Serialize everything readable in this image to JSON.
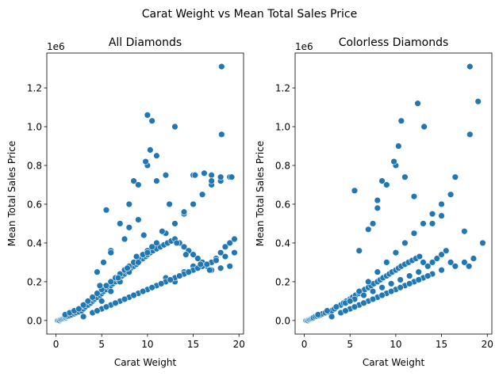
{
  "chart_data": {
    "suptitle": "Carat Weight vs Mean Total Sales Price",
    "point_color": "#1f77b4",
    "point_edge_color": "#ffffff",
    "panels": [
      {
        "type": "scatter",
        "title": "All Diamonds",
        "xlabel": "Carat Weight",
        "ylabel": "Mean Total Sales Price",
        "offset_text": "1e6",
        "xlim": [
          -1,
          20.5
        ],
        "ylim": [
          -0.07,
          1.38
        ],
        "xticks": [
          0,
          5,
          10,
          15,
          20
        ],
        "xtick_labels": [
          "0",
          "5",
          "10",
          "15",
          "20"
        ],
        "yticks": [
          0.0,
          0.2,
          0.4,
          0.6,
          0.8,
          1.0,
          1.2
        ],
        "ytick_labels": [
          "0.0",
          "0.2",
          "0.4",
          "0.6",
          "0.8",
          "1.0",
          "1.2"
        ],
        "x": [
          0.2,
          0.3,
          0.4,
          0.5,
          0.6,
          0.7,
          0.8,
          0.9,
          1.0,
          1.1,
          1.2,
          1.3,
          1.5,
          1.7,
          2.0,
          2.2,
          2.5,
          2.8,
          3.0,
          3.2,
          3.5,
          3.8,
          4.0,
          4.2,
          4.5,
          4.8,
          5.0,
          5.2,
          5.5,
          5.8,
          6.0,
          6.2,
          6.5,
          6.8,
          7.0,
          7.2,
          7.5,
          7.8,
          8.0,
          8.2,
          8.5,
          8.8,
          9.0,
          9.2,
          9.5,
          9.8,
          10.0,
          10.3,
          10.6,
          11.0,
          11.4,
          11.8,
          12.2,
          12.6,
          13.0,
          13.5,
          14.0,
          14.5,
          15.0,
          15.5,
          16.0,
          16.5,
          17.0,
          17.5,
          18.0,
          18.5,
          19.0,
          19.5,
          1.0,
          1.5,
          2.0,
          2.5,
          3.0,
          3.5,
          4.0,
          4.5,
          5.0,
          5.5,
          6.0,
          6.5,
          7.0,
          7.5,
          8.0,
          8.5,
          9.0,
          9.5,
          10.0,
          10.5,
          11.0,
          12.0,
          13.0,
          14.0,
          15.0,
          16.0,
          17.0,
          18.0,
          19.0,
          3.0,
          4.0,
          5.0,
          6.0,
          7.0,
          8.0,
          9.0,
          10.0,
          11.0,
          12.0,
          13.0,
          14.0,
          15.0,
          16.0,
          4.5,
          5.5,
          6.5,
          7.5,
          8.5,
          9.5,
          10.5,
          11.5,
          12.5,
          13.5,
          14.5,
          15.5,
          16.5,
          17.5,
          18.5,
          19.5,
          5.0,
          6.0,
          7.0,
          8.0,
          9.0,
          10.0,
          11.0,
          12.0,
          13.0,
          14.0,
          15.0,
          16.0,
          17.0,
          18.0,
          19.0,
          6.0,
          7.0,
          8.0,
          9.0,
          10.0,
          11.0,
          12.0,
          14.0,
          15.0,
          17.0,
          18.0,
          10.0,
          10.5,
          13.0,
          15.2,
          16.2,
          17.0,
          18.1,
          18.1,
          19.2,
          5.5,
          8.5,
          9.8,
          10.3,
          11.0,
          12.4,
          4.5,
          5.2,
          6.0,
          7.5,
          8.0,
          9.0,
          4.8,
          6.8,
          7.8,
          8.8,
          9.6,
          11.6,
          13.2,
          14.2,
          15.8,
          16.8
        ],
        "y": [
          0.0,
          0.0,
          0.0,
          0.005,
          0.005,
          0.008,
          0.01,
          0.012,
          0.015,
          0.015,
          0.02,
          0.022,
          0.025,
          0.03,
          0.035,
          0.04,
          0.045,
          0.05,
          0.06,
          0.07,
          0.08,
          0.09,
          0.1,
          0.11,
          0.12,
          0.13,
          0.14,
          0.15,
          0.16,
          0.17,
          0.18,
          0.19,
          0.2,
          0.21,
          0.22,
          0.23,
          0.24,
          0.25,
          0.26,
          0.27,
          0.28,
          0.29,
          0.3,
          0.31,
          0.32,
          0.33,
          0.34,
          0.35,
          0.36,
          0.37,
          0.38,
          0.39,
          0.4,
          0.41,
          0.42,
          0.4,
          0.38,
          0.36,
          0.34,
          0.32,
          0.3,
          0.28,
          0.3,
          0.32,
          0.35,
          0.38,
          0.4,
          0.42,
          0.03,
          0.04,
          0.05,
          0.06,
          0.08,
          0.1,
          0.12,
          0.14,
          0.16,
          0.18,
          0.2,
          0.22,
          0.24,
          0.26,
          0.28,
          0.3,
          0.32,
          0.34,
          0.36,
          0.38,
          0.4,
          0.22,
          0.2,
          0.25,
          0.28,
          0.3,
          0.26,
          0.27,
          0.28,
          0.02,
          0.04,
          0.06,
          0.08,
          0.1,
          0.12,
          0.14,
          0.16,
          0.18,
          0.2,
          0.22,
          0.24,
          0.26,
          0.28,
          0.05,
          0.07,
          0.09,
          0.11,
          0.13,
          0.15,
          0.17,
          0.19,
          0.21,
          0.23,
          0.25,
          0.27,
          0.29,
          0.31,
          0.33,
          0.35,
          0.1,
          0.15,
          0.2,
          0.25,
          0.3,
          0.35,
          0.4,
          0.45,
          0.5,
          0.55,
          0.6,
          0.65,
          0.7,
          0.72,
          0.74,
          0.36,
          0.5,
          0.6,
          0.7,
          0.8,
          0.85,
          0.75,
          0.56,
          0.75,
          0.75,
          0.74,
          1.06,
          1.03,
          1.0,
          0.75,
          0.76,
          0.72,
          0.96,
          1.31,
          0.74,
          0.57,
          0.72,
          0.82,
          0.88,
          0.72,
          0.6,
          0.25,
          0.3,
          0.35,
          0.42,
          0.48,
          0.52,
          0.18,
          0.22,
          0.27,
          0.33,
          0.44,
          0.46,
          0.4,
          0.34,
          0.29,
          0.26
        ]
      },
      {
        "type": "scatter",
        "title": "Colorless Diamonds",
        "xlabel": "Carat Weight",
        "ylabel": "Mean Total Sales Price",
        "offset_text": "1e6",
        "xlim": [
          -1,
          20.5
        ],
        "ylim": [
          -0.07,
          1.38
        ],
        "xticks": [
          0,
          5,
          10,
          15,
          20
        ],
        "xtick_labels": [
          "0",
          "5",
          "10",
          "15",
          "20"
        ],
        "yticks": [
          0.0,
          0.2,
          0.4,
          0.6,
          0.8,
          1.0,
          1.2
        ],
        "ytick_labels": [
          "0.0",
          "0.2",
          "0.4",
          "0.6",
          "0.8",
          "1.0",
          "1.2"
        ],
        "x": [
          0.2,
          0.3,
          0.4,
          0.5,
          0.6,
          0.7,
          0.8,
          0.9,
          1.0,
          1.2,
          1.4,
          1.6,
          1.8,
          2.0,
          2.3,
          2.6,
          3.0,
          3.3,
          3.6,
          4.0,
          4.3,
          4.6,
          5.0,
          5.3,
          5.6,
          6.0,
          6.3,
          6.6,
          7.0,
          7.3,
          7.6,
          8.0,
          8.3,
          8.6,
          9.0,
          9.3,
          9.6,
          10.0,
          10.3,
          10.6,
          11.0,
          11.4,
          11.8,
          12.2,
          12.6,
          13.0,
          13.5,
          14.0,
          14.5,
          15.0,
          15.5,
          16.0,
          16.5,
          17.5,
          18.0,
          18.5,
          19.5,
          1.5,
          2.5,
          3.5,
          4.5,
          5.5,
          6.5,
          7.5,
          8.5,
          9.5,
          10.5,
          11.5,
          12.5,
          3.0,
          4.0,
          5.0,
          6.0,
          7.0,
          8.0,
          9.0,
          10.0,
          11.0,
          12.0,
          13.0,
          14.0,
          15.0,
          4.5,
          5.5,
          6.5,
          7.5,
          8.5,
          9.5,
          10.5,
          11.5,
          12.5,
          13.5,
          5.0,
          6.0,
          7.0,
          8.0,
          9.0,
          10.0,
          11.0,
          12.0,
          13.0,
          14.0,
          15.0,
          16.0,
          6.0,
          7.0,
          8.0,
          9.0,
          10.0,
          11.0,
          12.0,
          14.0,
          15.0,
          16.5,
          17.5,
          18.1,
          18.1,
          19.0,
          12.4,
          13.1,
          10.6,
          9.8,
          10.3,
          8.5,
          5.5,
          7.5,
          8.0,
          9.0
        ],
        "y": [
          0.0,
          0.0,
          0.0,
          0.005,
          0.005,
          0.008,
          0.01,
          0.012,
          0.015,
          0.02,
          0.022,
          0.025,
          0.03,
          0.035,
          0.04,
          0.045,
          0.05,
          0.06,
          0.07,
          0.08,
          0.09,
          0.1,
          0.11,
          0.12,
          0.13,
          0.14,
          0.15,
          0.16,
          0.17,
          0.18,
          0.19,
          0.2,
          0.21,
          0.22,
          0.23,
          0.24,
          0.25,
          0.26,
          0.27,
          0.28,
          0.29,
          0.3,
          0.31,
          0.32,
          0.33,
          0.3,
          0.28,
          0.3,
          0.32,
          0.34,
          0.36,
          0.3,
          0.28,
          0.46,
          0.28,
          0.32,
          0.4,
          0.03,
          0.05,
          0.07,
          0.09,
          0.11,
          0.13,
          0.15,
          0.17,
          0.19,
          0.21,
          0.23,
          0.25,
          0.02,
          0.04,
          0.06,
          0.08,
          0.1,
          0.12,
          0.14,
          0.16,
          0.18,
          0.2,
          0.22,
          0.24,
          0.26,
          0.05,
          0.07,
          0.09,
          0.11,
          0.13,
          0.15,
          0.17,
          0.19,
          0.21,
          0.23,
          0.1,
          0.15,
          0.2,
          0.25,
          0.3,
          0.35,
          0.4,
          0.45,
          0.5,
          0.55,
          0.6,
          0.65,
          0.36,
          0.47,
          0.58,
          0.7,
          0.8,
          0.74,
          0.64,
          0.5,
          0.54,
          0.74,
          0.3,
          0.96,
          1.31,
          1.13,
          1.12,
          1.0,
          1.03,
          0.82,
          0.9,
          0.72,
          0.67,
          0.5,
          0.62,
          0.7
        ]
      }
    ]
  }
}
